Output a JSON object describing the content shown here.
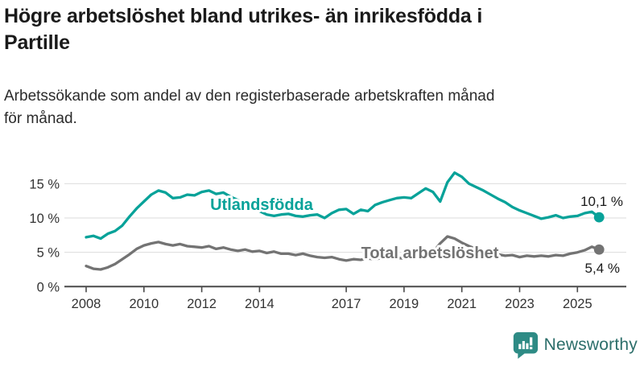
{
  "header": {
    "title": "Högre arbetslöshet bland utrikes- än inrikesfödda i Partille",
    "title_lines": [
      "Högre arbetslöshet bland utrikes- än inrikesfödda i",
      "Partille"
    ],
    "subtitle": "Arbetssökande som andel av den registerbaserade arbetskraften månad för månad.",
    "subtitle_lines": [
      "Arbetssökande som andel av den registerbaserade arbetskraften månad",
      "för månad."
    ]
  },
  "colors": {
    "accent_teal": "#07a299",
    "series_gray": "#737373",
    "grid": "#e2e2e2",
    "axis": "#4a4a4a",
    "axis_text": "#333333",
    "value_label_text": "#1a1a1a",
    "logo_bubble": "#2e8b85",
    "logo_text": "#2c6e6a",
    "background": "#ffffff"
  },
  "chart_data": {
    "type": "line",
    "title": "Högre arbetslöshet bland utrikes- än inrikesfödda i Partille",
    "subtitle": "Arbetssökande som andel av den registerbaserade arbetskraften månad för månad.",
    "x_unit": "year",
    "y_unit": "percent",
    "x_start": 2008.0,
    "x_step": 0.25,
    "x_end": 2025.75,
    "xlim": [
      2007.6,
      2026.3
    ],
    "ylim": [
      0,
      17.5
    ],
    "grid": "horizontal",
    "legend_position": "inline-labels",
    "xticks": [
      {
        "year": 2008,
        "label": "2008"
      },
      {
        "year": 2010,
        "label": "2010"
      },
      {
        "year": 2012,
        "label": "2012"
      },
      {
        "year": 2014,
        "label": "2014"
      },
      {
        "year": 2017,
        "label": "2017"
      },
      {
        "year": 2019,
        "label": "2019"
      },
      {
        "year": 2021,
        "label": "2021"
      },
      {
        "year": 2023,
        "label": "2023"
      },
      {
        "year": 2025,
        "label": "2025"
      }
    ],
    "yticks": [
      {
        "value": 0,
        "label": "0 %"
      },
      {
        "value": 5,
        "label": "5 %"
      },
      {
        "value": 10,
        "label": "10 %"
      },
      {
        "value": 15,
        "label": "15 %"
      }
    ],
    "series": [
      {
        "name": "Utlandsfödda",
        "color": "#07a299",
        "end_label": "10,1 %",
        "end_value": 10.1,
        "values": [
          7.2,
          7.4,
          7.0,
          7.7,
          8.1,
          8.9,
          10.2,
          11.4,
          12.4,
          13.4,
          14.0,
          13.7,
          12.9,
          13.0,
          13.4,
          13.3,
          13.8,
          14.0,
          13.5,
          13.7,
          13.1,
          12.6,
          12.1,
          11.5,
          11.0,
          10.5,
          10.3,
          10.5,
          10.6,
          10.3,
          10.2,
          10.4,
          10.5,
          10.0,
          10.7,
          11.2,
          11.3,
          10.6,
          11.2,
          11.0,
          11.9,
          12.3,
          12.6,
          12.9,
          13.0,
          12.9,
          13.6,
          14.3,
          13.8,
          12.4,
          15.2,
          16.6,
          16.0,
          15.0,
          14.5,
          14.0,
          13.4,
          12.8,
          12.3,
          11.6,
          11.1,
          10.7,
          10.3,
          9.9,
          10.1,
          10.4,
          10.0,
          10.2,
          10.3,
          10.7,
          10.9,
          10.1
        ]
      },
      {
        "name": "Total arbetslöshet",
        "color": "#737373",
        "end_label": "5,4 %",
        "end_value": 5.4,
        "values": [
          3.0,
          2.6,
          2.5,
          2.8,
          3.3,
          4.0,
          4.7,
          5.5,
          6.0,
          6.3,
          6.5,
          6.2,
          6.0,
          6.2,
          5.9,
          5.8,
          5.7,
          5.9,
          5.5,
          5.7,
          5.4,
          5.2,
          5.4,
          5.1,
          5.2,
          4.9,
          5.1,
          4.8,
          4.8,
          4.6,
          4.8,
          4.5,
          4.3,
          4.2,
          4.3,
          4.0,
          3.8,
          4.0,
          3.9,
          4.1,
          4.0,
          4.2,
          4.1,
          4.2,
          4.1,
          4.3,
          4.2,
          4.5,
          5.0,
          6.3,
          7.3,
          7.0,
          6.4,
          5.9,
          5.5,
          5.2,
          4.9,
          4.7,
          4.5,
          4.6,
          4.3,
          4.5,
          4.4,
          4.5,
          4.4,
          4.6,
          4.5,
          4.8,
          5.0,
          5.3,
          5.8,
          5.4
        ]
      }
    ]
  },
  "branding": {
    "logo_text": "Newsworthy",
    "logo_icon": "bar-chart-speech-bubble-icon"
  }
}
